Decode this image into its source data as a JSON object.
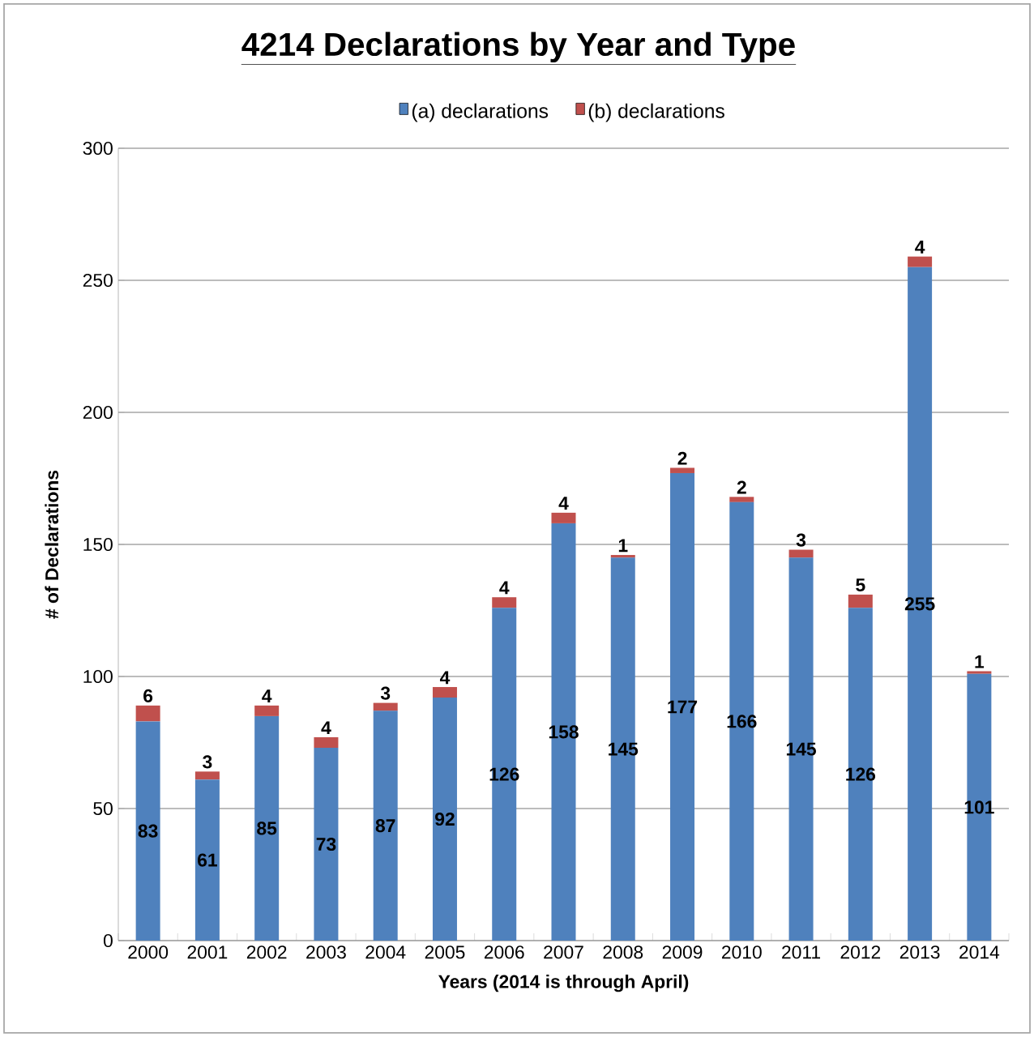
{
  "chart_data": {
    "type": "bar",
    "title": "4214 Declarations by Year and Type",
    "xlabel": "Years (2014 is through April)",
    "ylabel": "# of Declarations",
    "categories": [
      "2000",
      "2001",
      "2002",
      "2003",
      "2004",
      "2005",
      "2006",
      "2007",
      "2008",
      "2009",
      "2010",
      "2011",
      "2012",
      "2013",
      "2014"
    ],
    "series": [
      {
        "name": "(a) declarations",
        "color": "#4f81bd",
        "values": [
          83,
          61,
          85,
          73,
          87,
          92,
          126,
          158,
          145,
          177,
          166,
          145,
          126,
          255,
          101
        ]
      },
      {
        "name": "(b) declarations",
        "color": "#c0504d",
        "values": [
          6,
          3,
          4,
          4,
          3,
          4,
          4,
          4,
          1,
          2,
          2,
          3,
          5,
          4,
          1
        ]
      }
    ],
    "stacked": true,
    "data_labels": true,
    "ylim": [
      0,
      300
    ],
    "yticks": [
      0,
      50,
      100,
      150,
      200,
      250,
      300
    ],
    "grid": "y",
    "legend": "top"
  }
}
